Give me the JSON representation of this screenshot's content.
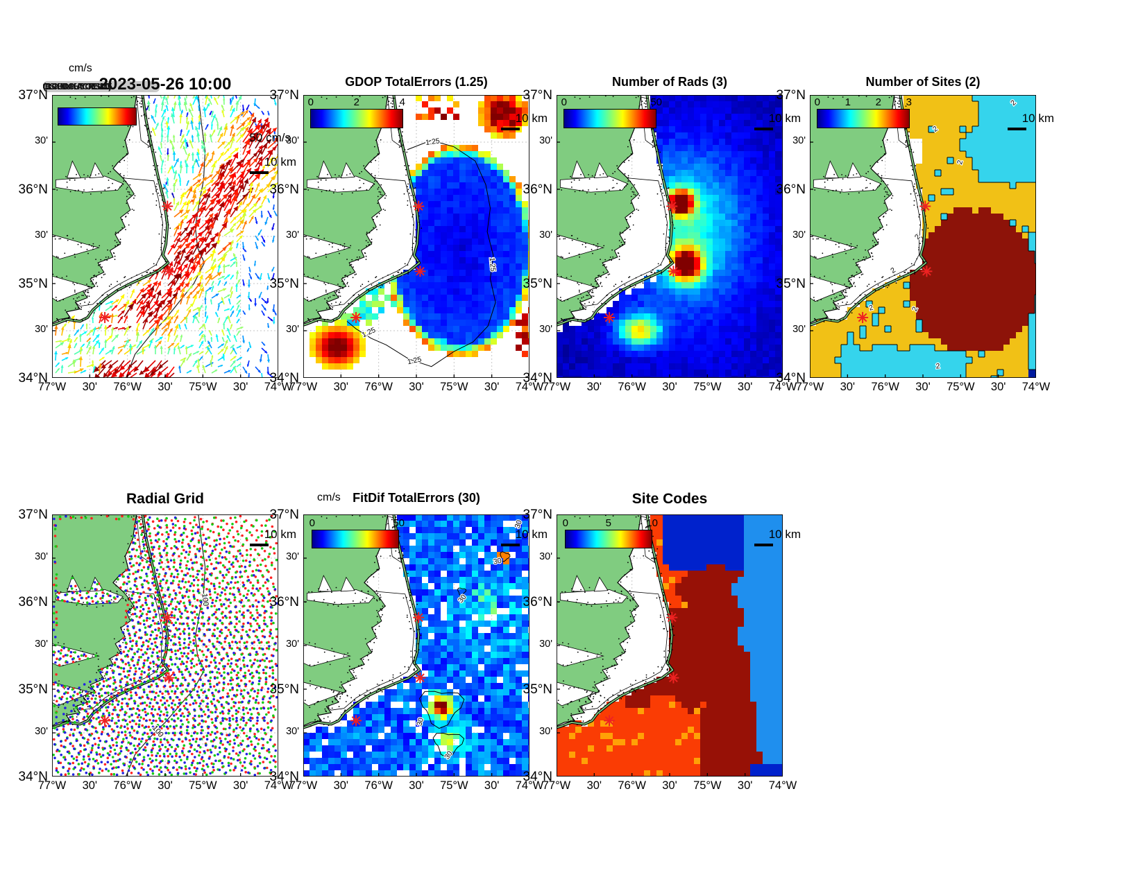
{
  "figure": {
    "background": "#ffffff"
  },
  "axes": {
    "lat_ticks": [
      "37°N",
      "30'",
      "36°N",
      "30'",
      "35°N",
      "30'",
      "34°N"
    ],
    "lon_ticks": [
      "77°W",
      "30'",
      "76°W",
      "30'",
      "75°W",
      "30'",
      "74°W"
    ]
  },
  "panels": [
    {
      "id": "currents",
      "title": "2023-05-26 10:00",
      "cbar_label": "cm/s",
      "cbar_ticks": [],
      "legend_overlap": "(CBLSCKHNDUCKHATYCORELSUM1035)",
      "vel_scale": "50 cm/s",
      "km_scale": "10 km"
    },
    {
      "id": "gdop",
      "title": "GDOP TotalErrors (1.25)",
      "cbar_ticks": [
        "0",
        "2",
        "4"
      ],
      "km_scale": "10 km",
      "contour_label": "1.25"
    },
    {
      "id": "rads",
      "title": "Number of Rads (3)",
      "cbar_ticks": [
        "0",
        "50"
      ],
      "km_scale": "10 km"
    },
    {
      "id": "nsites",
      "title": "Number of Sites (2)",
      "cbar_ticks": [
        "0",
        "1",
        "2",
        "3"
      ],
      "km_scale": "10 km",
      "contour_label": "2"
    },
    {
      "id": "radial",
      "title": "Radial Grid",
      "km_scale": "10 km",
      "contour_label": "100"
    },
    {
      "id": "fitdif",
      "title": "FitDif TotalErrors (30)",
      "cbar_label": "cm/s",
      "cbar_ticks": [
        "0",
        "50"
      ],
      "km_scale": "10 km",
      "contour_label": "30"
    },
    {
      "id": "sitecodes",
      "title": "Site Codes",
      "cbar_ticks": [
        "0",
        "5",
        "10"
      ],
      "km_scale": "10 km"
    }
  ],
  "sites": [
    {
      "lon": 75.47,
      "lat": 35.82
    },
    {
      "lon": 75.45,
      "lat": 35.13
    },
    {
      "lon": 76.3,
      "lat": 34.64
    }
  ],
  "colors": {
    "land": "#80CC80",
    "grid": "#c6c6c6",
    "coast": "#000000",
    "star": "#ee2222",
    "fan_red": "#ff2222",
    "fan_green": "#16cc16",
    "fan_blue": "#2222e0",
    "sites_cyan": "#35d4ec",
    "sites_gold": "#f1c116",
    "sites_darkred": "#8d1309",
    "sites_navy": "#001a9e",
    "codes_navy": "#0022cc",
    "codes_dodger": "#1f8fee",
    "codes_darkred": "#971106",
    "codes_orangered": "#fa3c04",
    "codes_orange": "#ffa106"
  },
  "chart_data": [
    {
      "type": "heatmap",
      "title": "2023-05-26 10:00",
      "units": "cm/s",
      "note": "surface current vectors, jet colormap, max scale 50 cm/s"
    },
    {
      "type": "heatmap",
      "title": "GDOP TotalErrors (1.25)",
      "range": [
        0,
        4
      ],
      "contour": 1.25
    },
    {
      "type": "heatmap",
      "title": "Number of Rads (3)",
      "range": [
        0,
        50
      ]
    },
    {
      "type": "heatmap",
      "title": "Number of Sites (2)",
      "range": [
        0,
        3
      ],
      "contour": 2
    },
    {
      "type": "scatter",
      "title": "Radial Grid",
      "series": [
        "red-site-fan",
        "green-site-fan",
        "blue-site-fan"
      ],
      "isobath": 100
    },
    {
      "type": "heatmap",
      "title": "FitDif TotalErrors (30)",
      "units": "cm/s",
      "range": [
        0,
        50
      ],
      "contour": 30
    },
    {
      "type": "heatmap",
      "title": "Site Codes",
      "range": [
        0,
        10
      ]
    },
    {
      "type": "table",
      "title": "shared axes",
      "x_range_degW": [
        77,
        74
      ],
      "y_range_degN": [
        34,
        37
      ]
    }
  ]
}
